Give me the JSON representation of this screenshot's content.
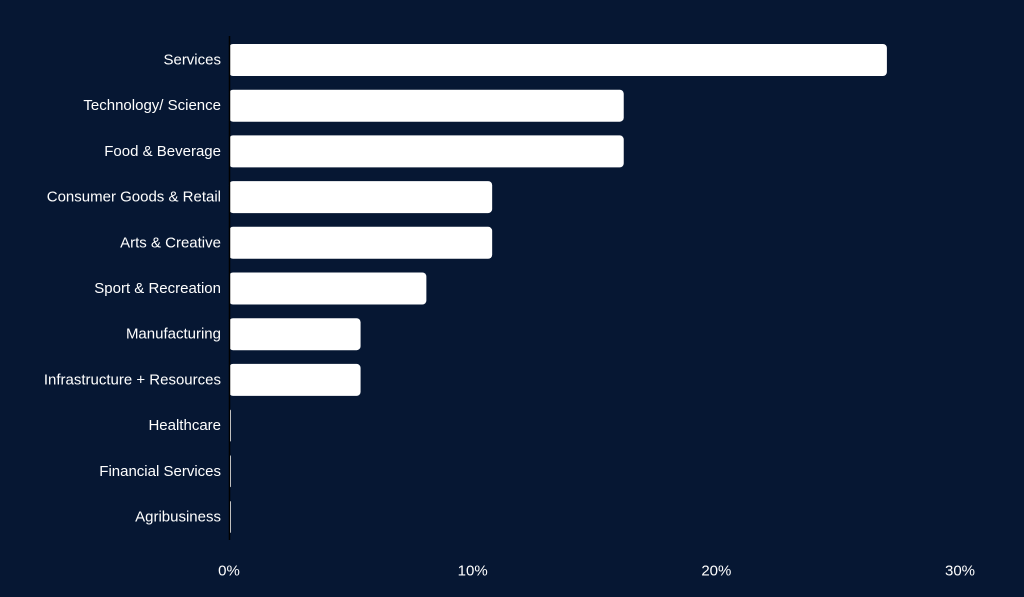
{
  "chart_data": {
    "type": "bar",
    "orientation": "horizontal",
    "categories": [
      "Services",
      "Technology/ Science",
      "Food & Beverage",
      "Consumer Goods & Retail",
      "Arts & Creative",
      "Sport & Recreation",
      "Manufacturing",
      "Infrastructure + Resources",
      "Healthcare",
      "Financial Services",
      "Agribusiness"
    ],
    "values": [
      27.0,
      16.2,
      16.2,
      10.8,
      10.8,
      8.1,
      5.4,
      5.4,
      0,
      0,
      0
    ],
    "x_ticks": [
      "0%",
      "10%",
      "20%",
      "30%"
    ],
    "xlim": [
      0,
      30
    ],
    "title": "",
    "xlabel": "",
    "ylabel": "",
    "grid": false,
    "legend": "none"
  },
  "colors": {
    "background": "#061733",
    "bar": "#ffffff",
    "axis": "#000000",
    "text": "#ffffff"
  }
}
